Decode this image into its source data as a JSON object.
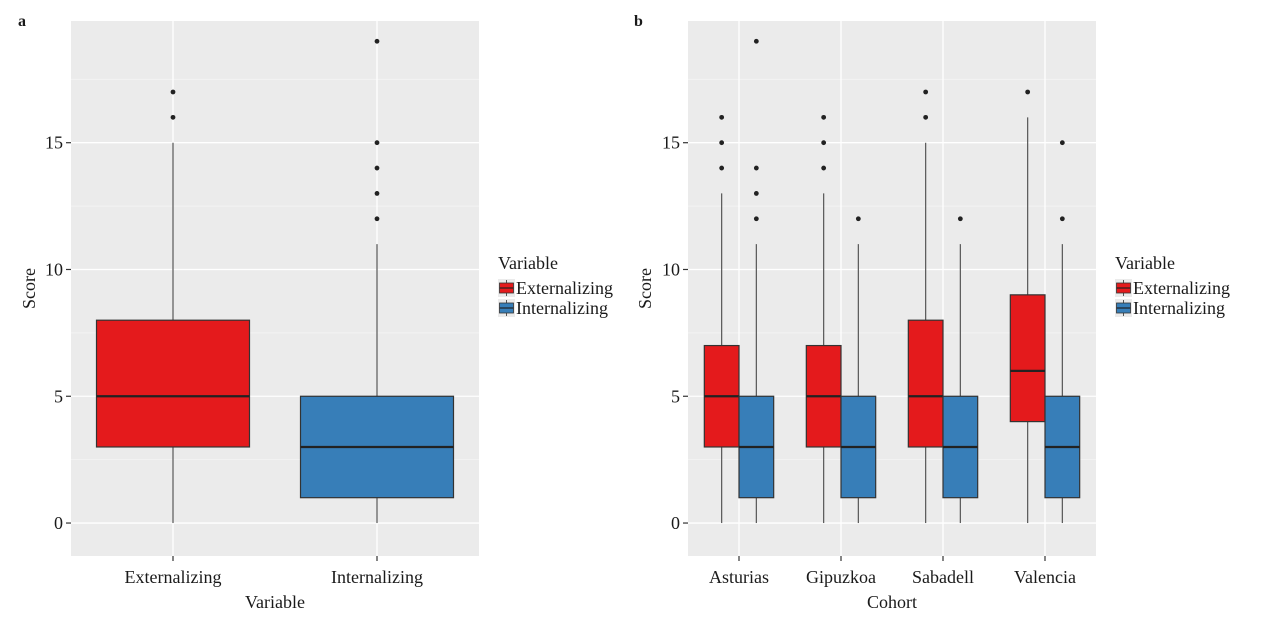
{
  "chart_data": [
    {
      "panel_label": "a",
      "type": "boxplot",
      "xlabel": "Variable",
      "ylabel": "Score",
      "ylim": [
        -1.3,
        19.8
      ],
      "yticks": [
        0,
        5,
        10,
        15
      ],
      "grid": true,
      "categories": [
        "Externalizing",
        "Internalizing"
      ],
      "legend": {
        "title": "Variable",
        "placement": "right",
        "entries": [
          "Externalizing",
          "Internalizing"
        ]
      },
      "boxes": [
        {
          "category": "Externalizing",
          "series": "Externalizing",
          "whisker_low": 0,
          "q1": 3,
          "median": 5,
          "q3": 8,
          "whisker_high": 15,
          "outliers": [
            16,
            17
          ]
        },
        {
          "category": "Internalizing",
          "series": "Internalizing",
          "whisker_low": 0,
          "q1": 1,
          "median": 3,
          "q3": 5,
          "whisker_high": 11,
          "outliers": [
            12,
            13,
            14,
            15,
            19
          ]
        }
      ]
    },
    {
      "panel_label": "b",
      "type": "boxplot",
      "xlabel": "Cohort",
      "ylabel": "Score",
      "ylim": [
        -1.3,
        19.8
      ],
      "yticks": [
        0,
        5,
        10,
        15
      ],
      "grid": true,
      "categories": [
        "Asturias",
        "Gipuzkoa",
        "Sabadell",
        "Valencia"
      ],
      "legend": {
        "title": "Variable",
        "placement": "right",
        "entries": [
          "Externalizing",
          "Internalizing"
        ]
      },
      "boxes": [
        {
          "category": "Asturias",
          "series": "Externalizing",
          "whisker_low": 0,
          "q1": 3,
          "median": 5,
          "q3": 7,
          "whisker_high": 13,
          "outliers": [
            14,
            15,
            16
          ]
        },
        {
          "category": "Asturias",
          "series": "Internalizing",
          "whisker_low": 0,
          "q1": 1,
          "median": 3,
          "q3": 5,
          "whisker_high": 11,
          "outliers": [
            12,
            13,
            14,
            19
          ]
        },
        {
          "category": "Gipuzkoa",
          "series": "Externalizing",
          "whisker_low": 0,
          "q1": 3,
          "median": 5,
          "q3": 7,
          "whisker_high": 13,
          "outliers": [
            14,
            15,
            16
          ]
        },
        {
          "category": "Gipuzkoa",
          "series": "Internalizing",
          "whisker_low": 0,
          "q1": 1,
          "median": 3,
          "q3": 5,
          "whisker_high": 11,
          "outliers": [
            12
          ]
        },
        {
          "category": "Sabadell",
          "series": "Externalizing",
          "whisker_low": 0,
          "q1": 3,
          "median": 5,
          "q3": 8,
          "whisker_high": 15,
          "outliers": [
            16,
            17
          ]
        },
        {
          "category": "Sabadell",
          "series": "Internalizing",
          "whisker_low": 0,
          "q1": 1,
          "median": 3,
          "q3": 5,
          "whisker_high": 11,
          "outliers": [
            12
          ]
        },
        {
          "category": "Valencia",
          "series": "Externalizing",
          "whisker_low": 0,
          "q1": 4,
          "median": 6,
          "q3": 9,
          "whisker_high": 16,
          "outliers": [
            17
          ]
        },
        {
          "category": "Valencia",
          "series": "Internalizing",
          "whisker_low": 0,
          "q1": 1,
          "median": 3,
          "q3": 5,
          "whisker_high": 11,
          "outliers": [
            12,
            15
          ]
        }
      ]
    }
  ],
  "colors": {
    "Externalizing": "#e41a1c",
    "Internalizing": "#377eb8",
    "panel_background": "#ebebeb",
    "grid": "#ffffff",
    "outline": "#333333"
  }
}
